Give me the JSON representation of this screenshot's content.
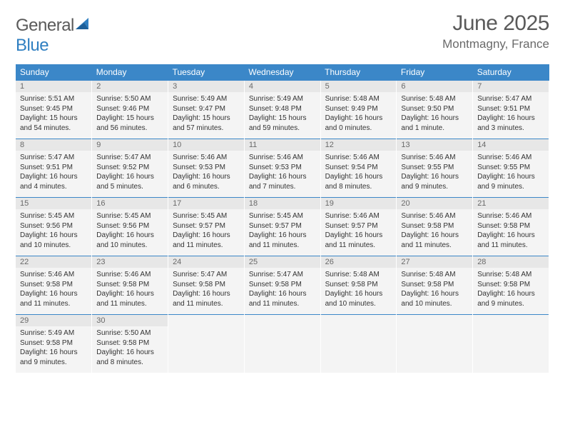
{
  "brand": {
    "text1": "General",
    "text2": "Blue"
  },
  "title": "June 2025",
  "location": "Montmagny, France",
  "colors": {
    "header_bg": "#3b87c8",
    "header_fg": "#ffffff",
    "daynum_bg": "#e7e7e7",
    "cell_bg": "#f4f4f4",
    "rule": "#3b87c8",
    "text": "#333333",
    "muted": "#6a6a6a",
    "brand_blue": "#2f7fc1"
  },
  "weekdays": [
    "Sunday",
    "Monday",
    "Tuesday",
    "Wednesday",
    "Thursday",
    "Friday",
    "Saturday"
  ],
  "weeks": [
    [
      {
        "n": "1",
        "sr": "5:51 AM",
        "ss": "9:45 PM",
        "dl": "15 hours and 54 minutes."
      },
      {
        "n": "2",
        "sr": "5:50 AM",
        "ss": "9:46 PM",
        "dl": "15 hours and 56 minutes."
      },
      {
        "n": "3",
        "sr": "5:49 AM",
        "ss": "9:47 PM",
        "dl": "15 hours and 57 minutes."
      },
      {
        "n": "4",
        "sr": "5:49 AM",
        "ss": "9:48 PM",
        "dl": "15 hours and 59 minutes."
      },
      {
        "n": "5",
        "sr": "5:48 AM",
        "ss": "9:49 PM",
        "dl": "16 hours and 0 minutes."
      },
      {
        "n": "6",
        "sr": "5:48 AM",
        "ss": "9:50 PM",
        "dl": "16 hours and 1 minute."
      },
      {
        "n": "7",
        "sr": "5:47 AM",
        "ss": "9:51 PM",
        "dl": "16 hours and 3 minutes."
      }
    ],
    [
      {
        "n": "8",
        "sr": "5:47 AM",
        "ss": "9:51 PM",
        "dl": "16 hours and 4 minutes."
      },
      {
        "n": "9",
        "sr": "5:47 AM",
        "ss": "9:52 PM",
        "dl": "16 hours and 5 minutes."
      },
      {
        "n": "10",
        "sr": "5:46 AM",
        "ss": "9:53 PM",
        "dl": "16 hours and 6 minutes."
      },
      {
        "n": "11",
        "sr": "5:46 AM",
        "ss": "9:53 PM",
        "dl": "16 hours and 7 minutes."
      },
      {
        "n": "12",
        "sr": "5:46 AM",
        "ss": "9:54 PM",
        "dl": "16 hours and 8 minutes."
      },
      {
        "n": "13",
        "sr": "5:46 AM",
        "ss": "9:55 PM",
        "dl": "16 hours and 9 minutes."
      },
      {
        "n": "14",
        "sr": "5:46 AM",
        "ss": "9:55 PM",
        "dl": "16 hours and 9 minutes."
      }
    ],
    [
      {
        "n": "15",
        "sr": "5:45 AM",
        "ss": "9:56 PM",
        "dl": "16 hours and 10 minutes."
      },
      {
        "n": "16",
        "sr": "5:45 AM",
        "ss": "9:56 PM",
        "dl": "16 hours and 10 minutes."
      },
      {
        "n": "17",
        "sr": "5:45 AM",
        "ss": "9:57 PM",
        "dl": "16 hours and 11 minutes."
      },
      {
        "n": "18",
        "sr": "5:45 AM",
        "ss": "9:57 PM",
        "dl": "16 hours and 11 minutes."
      },
      {
        "n": "19",
        "sr": "5:46 AM",
        "ss": "9:57 PM",
        "dl": "16 hours and 11 minutes."
      },
      {
        "n": "20",
        "sr": "5:46 AM",
        "ss": "9:58 PM",
        "dl": "16 hours and 11 minutes."
      },
      {
        "n": "21",
        "sr": "5:46 AM",
        "ss": "9:58 PM",
        "dl": "16 hours and 11 minutes."
      }
    ],
    [
      {
        "n": "22",
        "sr": "5:46 AM",
        "ss": "9:58 PM",
        "dl": "16 hours and 11 minutes."
      },
      {
        "n": "23",
        "sr": "5:46 AM",
        "ss": "9:58 PM",
        "dl": "16 hours and 11 minutes."
      },
      {
        "n": "24",
        "sr": "5:47 AM",
        "ss": "9:58 PM",
        "dl": "16 hours and 11 minutes."
      },
      {
        "n": "25",
        "sr": "5:47 AM",
        "ss": "9:58 PM",
        "dl": "16 hours and 11 minutes."
      },
      {
        "n": "26",
        "sr": "5:48 AM",
        "ss": "9:58 PM",
        "dl": "16 hours and 10 minutes."
      },
      {
        "n": "27",
        "sr": "5:48 AM",
        "ss": "9:58 PM",
        "dl": "16 hours and 10 minutes."
      },
      {
        "n": "28",
        "sr": "5:48 AM",
        "ss": "9:58 PM",
        "dl": "16 hours and 9 minutes."
      }
    ],
    [
      {
        "n": "29",
        "sr": "5:49 AM",
        "ss": "9:58 PM",
        "dl": "16 hours and 9 minutes."
      },
      {
        "n": "30",
        "sr": "5:50 AM",
        "ss": "9:58 PM",
        "dl": "16 hours and 8 minutes."
      },
      null,
      null,
      null,
      null,
      null
    ]
  ],
  "labels": {
    "sunrise": "Sunrise: ",
    "sunset": "Sunset: ",
    "daylight": "Daylight: "
  }
}
